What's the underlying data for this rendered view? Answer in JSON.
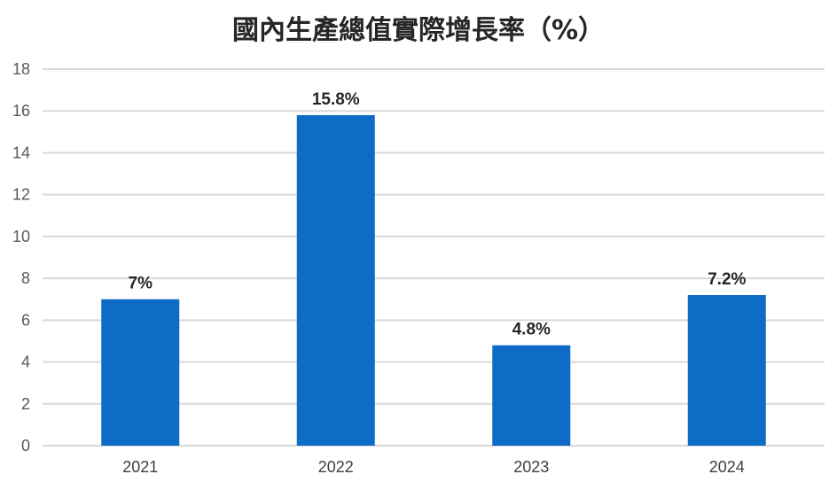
{
  "chart_data": {
    "type": "bar",
    "title": "國內生產總值實際增長率（%）",
    "categories": [
      "2021",
      "2022",
      "2023",
      "2024"
    ],
    "values": [
      7,
      15.8,
      4.8,
      7.2
    ],
    "data_labels": [
      "7%",
      "15.8%",
      "4.8%",
      "7.2%"
    ],
    "ylim": [
      0,
      18
    ],
    "yticks": [
      "0",
      "2",
      "4",
      "6",
      "8",
      "10",
      "12",
      "14",
      "16",
      "18"
    ],
    "xlabel": "",
    "ylabel": "",
    "grid": true,
    "legend": "none",
    "bar_color": "#0F6CC6",
    "grid_color": "#D9D9D9"
  }
}
